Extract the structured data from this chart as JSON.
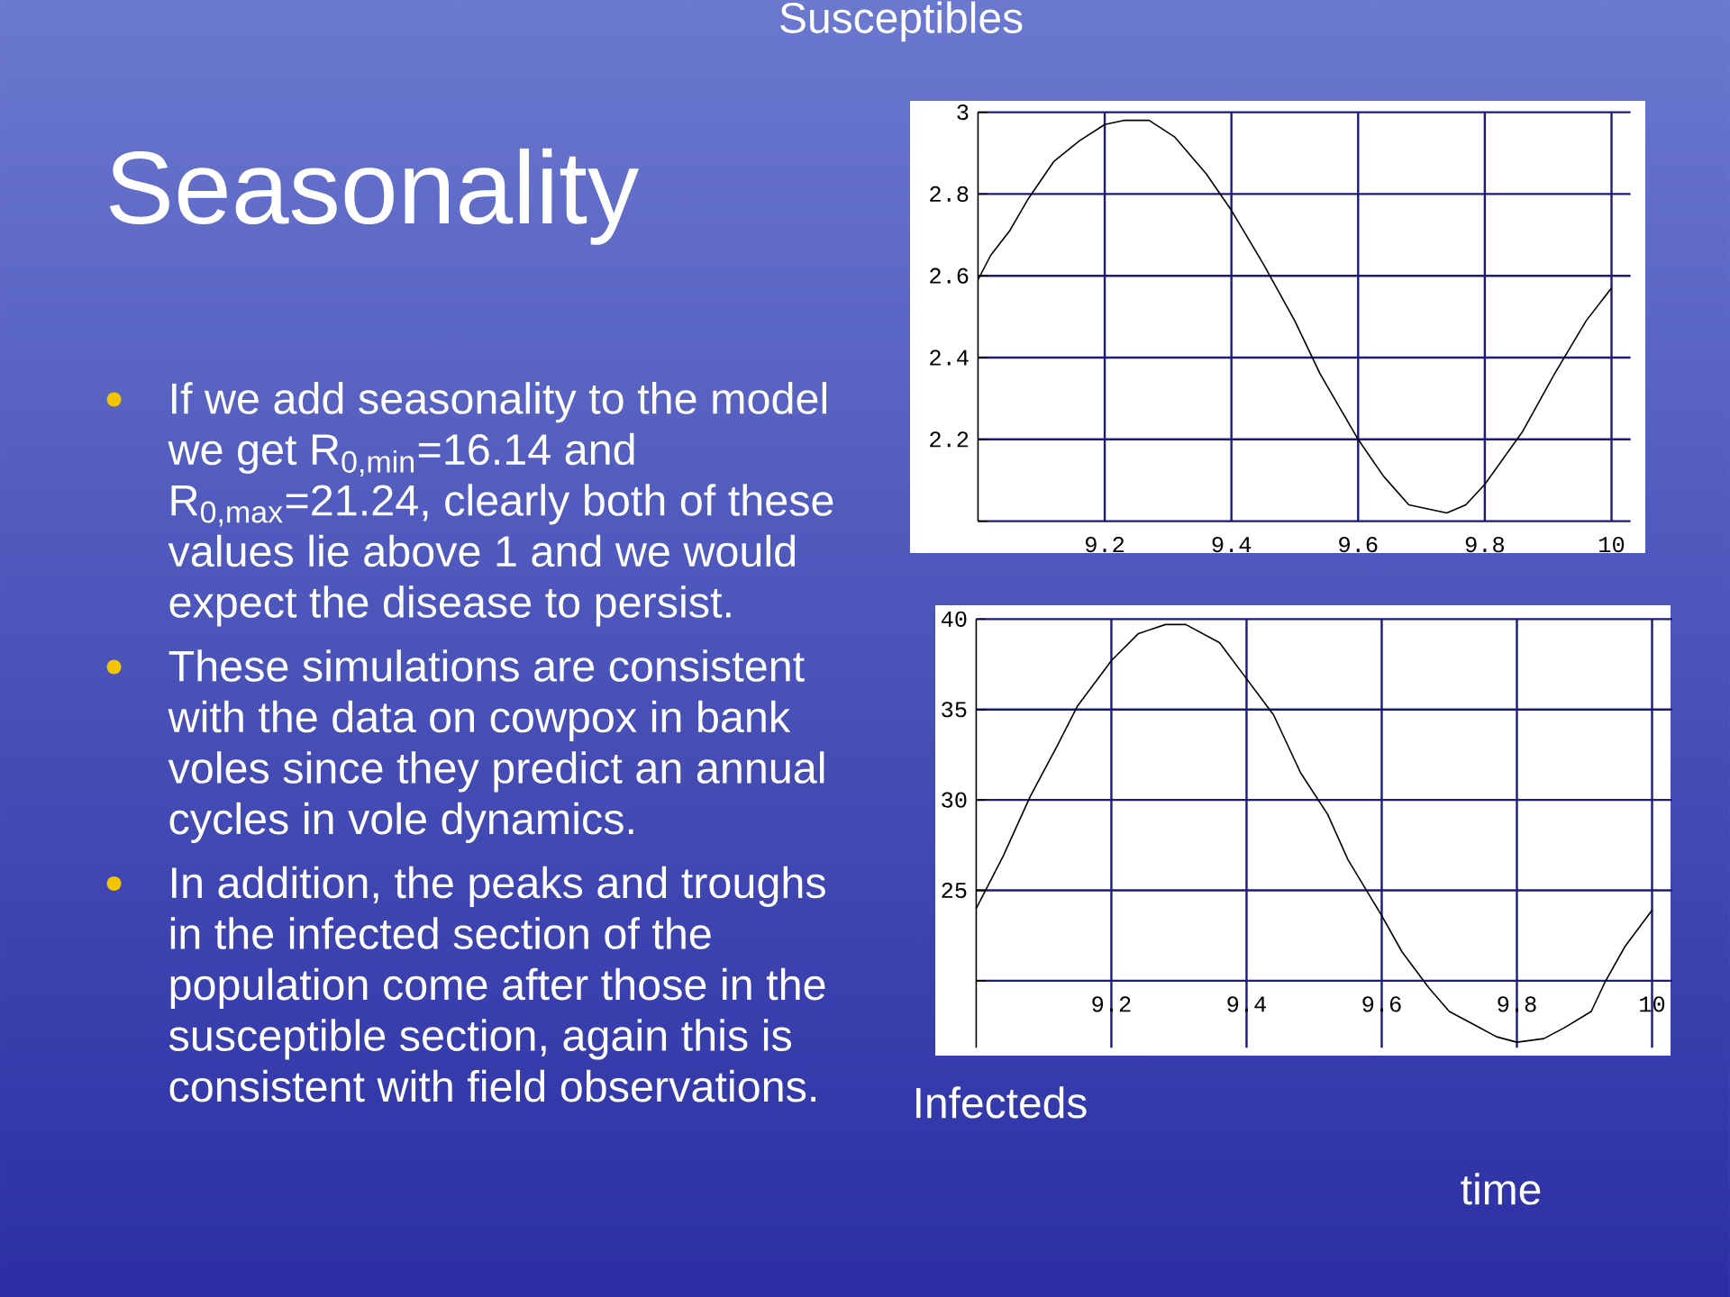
{
  "chart_data": [
    {
      "type": "other",
      "title": "Seasonality",
      "annotations": [
        "If we add seasonality to the model we get R$_{0,min}$=16.14 and R$_{0,max}$=21.24, clearly both of these values lie above 1 and we would expect the disease to persist.",
        "These simulations are consistent with the data on cowpox in bank voles since they predict an annual cycles in vole dynamics.",
        "In addition, the peaks and troughs in the infected section of the population come after those in the susceptible section, again this is consistent with field observations."
      ]
    },
    {
      "type": "line",
      "title": "Susceptibles",
      "x": [
        9.0,
        9.02,
        9.05,
        9.08,
        9.12,
        9.16,
        9.2,
        9.23,
        9.27,
        9.31,
        9.36,
        9.4,
        9.45,
        9.5,
        9.54,
        9.6,
        9.64,
        9.68,
        9.74,
        9.77,
        9.8,
        9.86,
        9.91,
        9.96,
        10.0
      ],
      "values": [
        2.59,
        2.65,
        2.71,
        2.79,
        2.88,
        2.93,
        2.97,
        2.98,
        2.98,
        2.94,
        2.85,
        2.76,
        2.63,
        2.49,
        2.36,
        2.2,
        2.11,
        2.04,
        2.02,
        2.04,
        2.09,
        2.22,
        2.36,
        2.49,
        2.57
      ],
      "color": "#000000",
      "xlim": [
        9,
        10.03
      ],
      "ylim": [
        2,
        3
      ],
      "xticks": [
        9.2,
        9.4,
        9.6,
        9.8,
        10
      ],
      "yticks": [
        {
          "value": 2,
          "label": null
        },
        2.2,
        2.4,
        2.6,
        2.8,
        3
      ],
      "grid": true
    },
    {
      "type": "line",
      "title": "Infecteds",
      "xlabel": "time",
      "x": [
        9.0,
        9.04,
        9.08,
        9.12,
        9.15,
        9.2,
        9.24,
        9.28,
        9.31,
        9.36,
        9.4,
        9.44,
        9.48,
        9.52,
        9.55,
        9.6,
        9.63,
        9.67,
        9.7,
        9.74,
        9.77,
        9.8,
        9.84,
        9.87,
        9.91,
        9.93,
        9.96,
        10.0
      ],
      "values": [
        24.0,
        26.9,
        30.2,
        33.0,
        35.2,
        37.7,
        39.2,
        39.7,
        39.7,
        38.7,
        36.7,
        34.7,
        31.5,
        29.2,
        26.7,
        23.6,
        21.6,
        19.6,
        18.3,
        17.5,
        16.9,
        16.6,
        16.8,
        17.4,
        18.3,
        19.9,
        21.9,
        23.9
      ],
      "color": "#000000",
      "xlim": [
        9,
        10.03
      ],
      "ylim": [
        16.3,
        40
      ],
      "xticks": [
        9.2,
        9.4,
        9.6,
        9.8,
        10
      ],
      "yticks": [
        {
          "value": 20,
          "label": null
        },
        25,
        30,
        35,
        40
      ],
      "grid": true
    }
  ]
}
